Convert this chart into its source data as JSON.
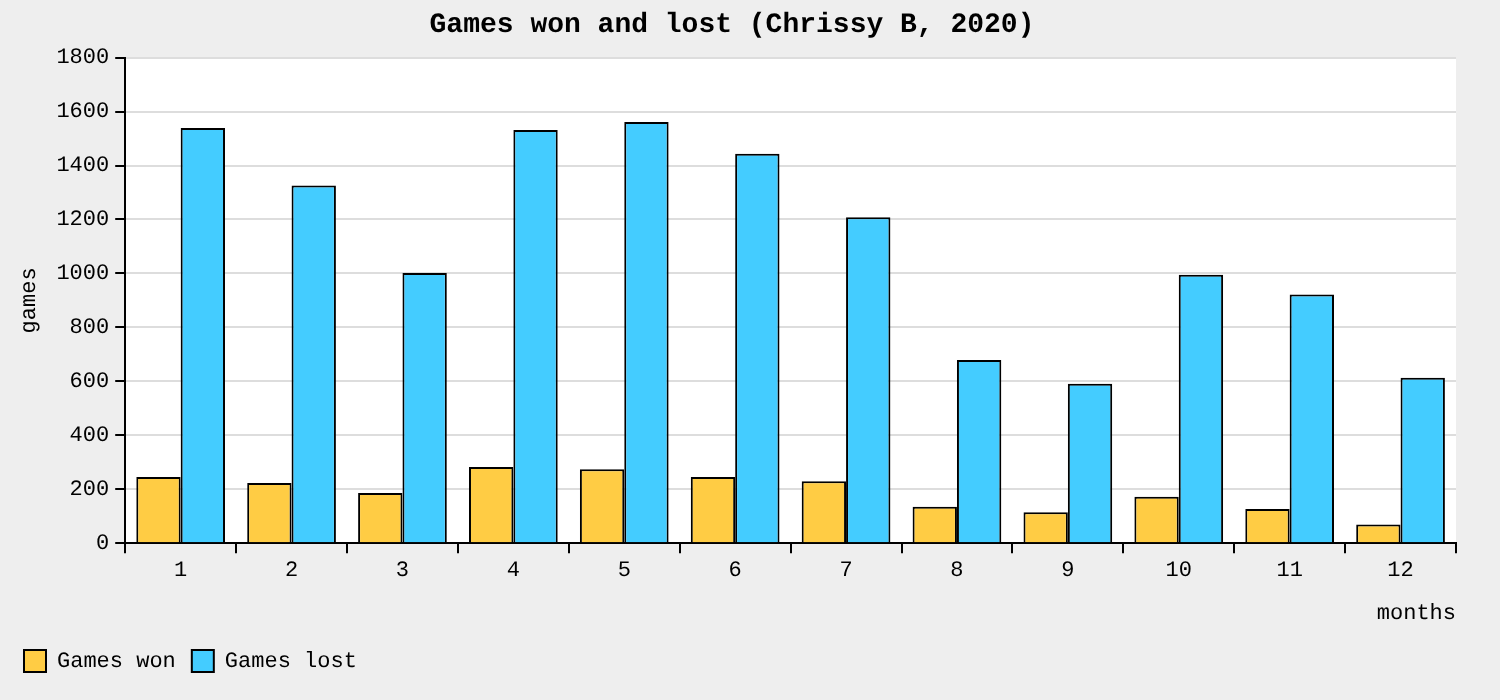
{
  "chart_data": {
    "type": "bar",
    "title": "Games won and lost (Chrissy B, 2020)",
    "xlabel": "months",
    "ylabel": "games",
    "categories": [
      "1",
      "2",
      "3",
      "4",
      "5",
      "6",
      "7",
      "8",
      "9",
      "10",
      "11",
      "12"
    ],
    "series": [
      {
        "name": "Games won",
        "color": "#ffcc44",
        "values": [
          245,
          223,
          186,
          282,
          274,
          245,
          230,
          135,
          115,
          172,
          127,
          69
        ]
      },
      {
        "name": "Games lost",
        "color": "#44ccff",
        "values": [
          1539,
          1326,
          1002,
          1532,
          1561,
          1444,
          1208,
          679,
          591,
          995,
          922,
          613
        ]
      }
    ],
    "ylim": [
      0,
      1800
    ],
    "yticks": [
      0,
      200,
      400,
      600,
      800,
      1000,
      1200,
      1400,
      1600,
      1800
    ],
    "grid": "y",
    "legend": "bottom left"
  }
}
